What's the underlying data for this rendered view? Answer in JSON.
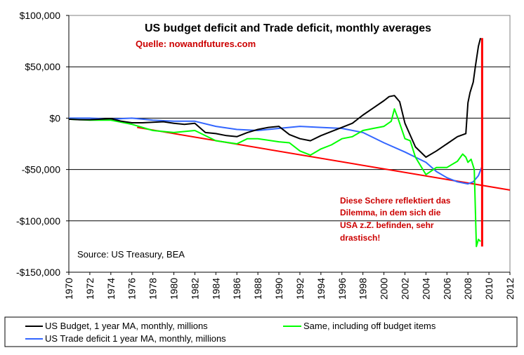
{
  "chart_data": {
    "type": "line",
    "title": "US budget deficit and Trade deficit, monthly averages",
    "source_note": "Quelle: nowandfutures.com",
    "source_footer": "Source: US Treasury, BEA",
    "annotation": "Diese Schere reflektiert das Dilemma, in dem sich die USA z.Z. befinden, sehr drastisch!",
    "annotation_lines": [
      "Diese Schere reflektiert das",
      "Dilemma, in dem sich die",
      "USA z.Z. befinden, sehr",
      "drastisch!"
    ],
    "xlabel": "",
    "ylabel": "",
    "xlim": [
      1970,
      2012
    ],
    "ylim": [
      -150000,
      100000
    ],
    "x_ticks": [
      "1970",
      "1972",
      "1974",
      "1976",
      "1978",
      "1980",
      "1982",
      "1984",
      "1986",
      "1988",
      "1990",
      "1992",
      "1994",
      "1996",
      "1998",
      "2000",
      "2002",
      "2004",
      "2006",
      "2008",
      "2010",
      "2012"
    ],
    "y_ticks": [
      {
        "value": 100000,
        "label": "$100,000"
      },
      {
        "value": 50000,
        "label": "$50,000"
      },
      {
        "value": 0,
        "label": "$0"
      },
      {
        "value": -50000,
        "label": "-$50,000"
      },
      {
        "value": -100000,
        "label": "-$100,000"
      },
      {
        "value": -150000,
        "label": "-$150,000"
      }
    ],
    "grid": "horizontal",
    "legend_position": "bottom",
    "colors": {
      "budget": "#000000",
      "off_budget": "#00ff00",
      "trade": "#3366ff",
      "trend": "#ff0000",
      "annotation_text": "#cc0000",
      "plot_background": "#ffffff",
      "gridline": "#000000"
    },
    "series": [
      {
        "name": "US Budget, 1 year MA, monthly, millions",
        "key": "budget",
        "x": [
          1970,
          1971,
          1972,
          1973,
          1974,
          1975,
          1976,
          1977,
          1978,
          1979,
          1980,
          1981,
          1982,
          1983,
          1984,
          1985,
          1986,
          1987,
          1988,
          1989,
          1990,
          1991,
          1992,
          1993,
          1994,
          1995,
          1996,
          1997,
          1998,
          1999,
          2000,
          2000.5,
          2001,
          2001.5,
          2002,
          2003,
          2004,
          2005,
          2006,
          2007,
          2007.8,
          2008,
          2008.2,
          2008.5,
          2008.7,
          2009,
          2009.2
        ],
        "values": [
          -1000,
          -1500,
          -1500,
          -1000,
          -500,
          -3000,
          -4500,
          -4500,
          -4000,
          -3500,
          -5000,
          -6000,
          -5000,
          -14000,
          -15000,
          -17000,
          -18000,
          -14000,
          -11000,
          -9000,
          -8000,
          -16000,
          -20000,
          -22000,
          -17000,
          -13000,
          -9000,
          -5000,
          3000,
          10000,
          17000,
          21000,
          22000,
          16000,
          -5000,
          -28000,
          -38000,
          -32000,
          -25000,
          -18000,
          -15000,
          15000,
          25000,
          35000,
          50000,
          70000,
          78000
        ]
      },
      {
        "name": "Same, including off budget items",
        "key": "off_budget",
        "x": [
          1970,
          1972,
          1974,
          1976,
          1978,
          1980,
          1982,
          1984,
          1986,
          1987,
          1988,
          1990,
          1991,
          1992,
          1993,
          1994,
          1995,
          1996,
          1997,
          1998,
          1999,
          2000,
          2000.7,
          2001,
          2001.4,
          2002,
          2002.5,
          2003,
          2004,
          2005,
          2006,
          2007,
          2007.5,
          2007.8,
          2008,
          2008.3,
          2008.6,
          2008.8,
          2009,
          2009.2
        ],
        "values": [
          -1000,
          -2000,
          -2000,
          -6000,
          -12000,
          -14000,
          -12000,
          -22000,
          -25000,
          -20000,
          -20000,
          -23000,
          -24000,
          -32000,
          -36000,
          -30000,
          -26000,
          -20000,
          -18000,
          -12000,
          -10000,
          -8000,
          -3000,
          9000,
          -2000,
          -20000,
          -22000,
          -38000,
          -55000,
          -48000,
          -48000,
          -42000,
          -35000,
          -38000,
          -43000,
          -40000,
          -50000,
          -125000,
          -118000,
          -120000
        ]
      },
      {
        "name": "US Trade deficit 1 year MA, monthly, millions",
        "key": "trade",
        "x": [
          1970,
          1972,
          1974,
          1976,
          1978,
          1980,
          1982,
          1984,
          1986,
          1988,
          1990,
          1992,
          1994,
          1996,
          1998,
          2000,
          2002,
          2004,
          2005,
          2006,
          2007,
          2008,
          2008.5,
          2009,
          2009.3
        ],
        "values": [
          0,
          0,
          -1000,
          0,
          -2000,
          -3000,
          -3000,
          -8000,
          -11000,
          -12000,
          -10000,
          -8000,
          -9000,
          -10000,
          -14000,
          -24000,
          -33000,
          -43000,
          -52000,
          -58000,
          -62000,
          -64000,
          -62000,
          -56000,
          -48000
        ]
      }
    ],
    "trend_line": {
      "x": [
        1976.5,
        2012
      ],
      "values": [
        -9000,
        -70000
      ]
    },
    "vertical_line": {
      "x": 2009.35,
      "range": [
        -125000,
        78000
      ]
    }
  }
}
